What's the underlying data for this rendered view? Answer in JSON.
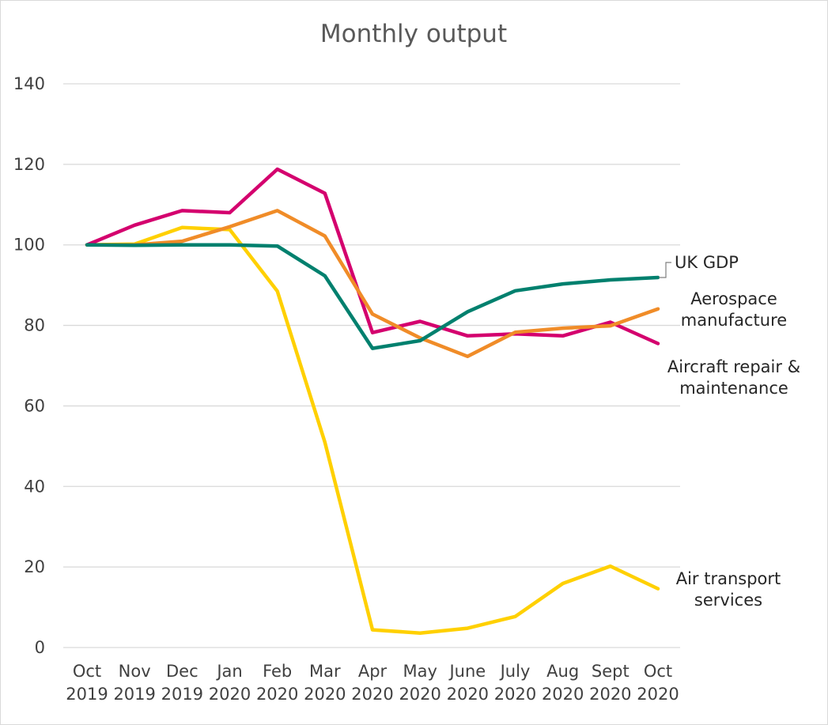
{
  "chart_data": {
    "type": "line",
    "title": "Monthly output",
    "xlabel": "",
    "ylabel": "",
    "ylim": [
      0,
      140
    ],
    "yticks": [
      0,
      20,
      40,
      60,
      80,
      100,
      120,
      140
    ],
    "grid": true,
    "categories": [
      [
        "Oct",
        "2019"
      ],
      [
        "Nov",
        "2019"
      ],
      [
        "Dec",
        "2019"
      ],
      [
        "Jan",
        "2020"
      ],
      [
        "Feb",
        "2020"
      ],
      [
        "Mar",
        "2020"
      ],
      [
        "Apr",
        "2020"
      ],
      [
        "May",
        "2020"
      ],
      [
        "June",
        "2020"
      ],
      [
        "July",
        "2020"
      ],
      [
        "Aug",
        "2020"
      ],
      [
        "Sept",
        "2020"
      ],
      [
        "Oct",
        "2020"
      ]
    ],
    "series": [
      {
        "name": "UK GDP",
        "label_lines": [
          "UK GDP"
        ],
        "color": "#00806e",
        "values": [
          100,
          99.9,
          100,
          100,
          99.7,
          92.3,
          74.3,
          76.2,
          83.4,
          88.6,
          90.3,
          91.3,
          91.9
        ]
      },
      {
        "name": "Aerospace manufacture",
        "label_lines": [
          "Aerospace",
          "manufacture"
        ],
        "color": "#f08c28",
        "values": [
          100,
          100,
          100.9,
          104.5,
          108.5,
          102.2,
          82.8,
          76.9,
          72.3,
          78.3,
          79.3,
          79.9,
          84.1
        ]
      },
      {
        "name": "Aircraft repair & maintenance",
        "label_lines": [
          "Aircraft repair &",
          "maintenance"
        ],
        "color": "#d4006e",
        "values": [
          100,
          104.9,
          108.5,
          108,
          118.8,
          112.8,
          78.2,
          81,
          77.4,
          77.9,
          77.4,
          80.8,
          75.5
        ]
      },
      {
        "name": "Air transport services",
        "label_lines": [
          "Air transport",
          "services"
        ],
        "color": "#ffd000",
        "values": [
          100,
          100.2,
          104.3,
          103.8,
          88.5,
          51,
          4.4,
          3.6,
          4.8,
          7.7,
          15.9,
          20.2,
          14.6
        ]
      }
    ]
  }
}
